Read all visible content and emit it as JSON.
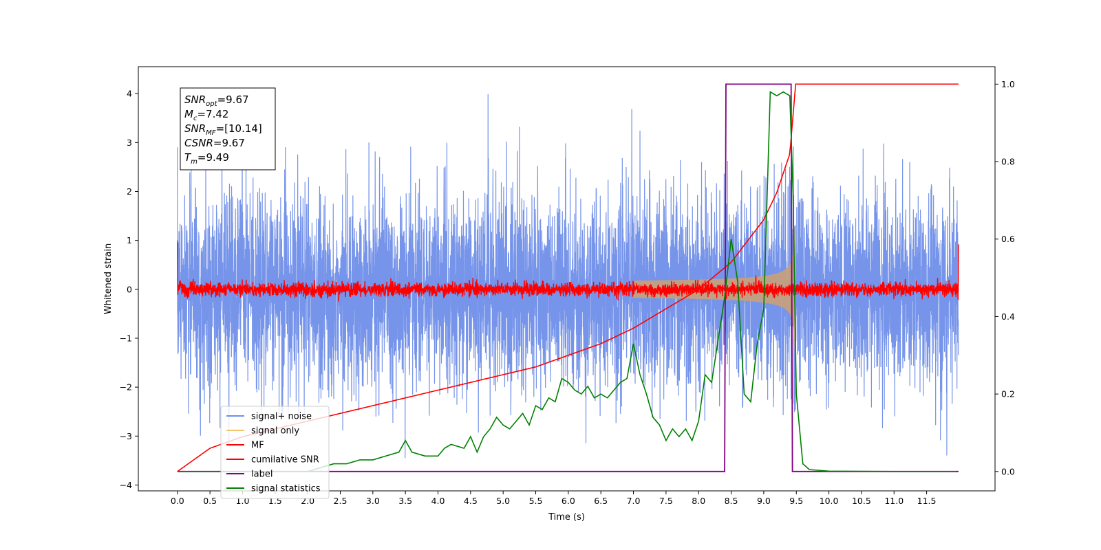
{
  "chart_data": {
    "type": "line",
    "title": "",
    "xlabel": "Time (s)",
    "ylabel": "Whitened strain",
    "xlim": [
      -0.6,
      12.55
    ],
    "ylim": [
      -4.12,
      4.55
    ],
    "y2lim": [
      -0.05,
      1.045
    ],
    "x_ticks": [
      "0.0",
      "0.5",
      "1.0",
      "1.5",
      "2.0",
      "2.5",
      "3.0",
      "3.5",
      "4.0",
      "4.5",
      "5.0",
      "5.5",
      "6.0",
      "6.5",
      "7.0",
      "7.5",
      "8.0",
      "8.5",
      "9.0",
      "9.5",
      "10.0",
      "10.5",
      "11.0",
      "11.5"
    ],
    "y_ticks": [
      "4",
      "3",
      "2",
      "1",
      "0",
      "−1",
      "−2",
      "−3",
      "−4"
    ],
    "y2_ticks": [
      "1.0",
      "0.8",
      "0.6",
      "0.4",
      "0.2",
      "0.0"
    ],
    "grid": false,
    "legend_position": "lower-left",
    "annotation": [
      {
        "main": "SNR",
        "sub": "opt",
        "value": "=9.67"
      },
      {
        "main": "M",
        "sub": "c",
        "value": "=7.42"
      },
      {
        "main": "SNR",
        "sub": "MF",
        "value": "=[10.14]"
      },
      {
        "main": "CSNR",
        "sub": "",
        "value": "=9.67"
      },
      {
        "main": "T",
        "sub": "m",
        "value": "=9.49"
      }
    ],
    "series": [
      {
        "name": "signal+ noise",
        "color": "#6f8ee8",
        "axis": "left",
        "noise_sigma": 1.0,
        "x_range": [
          0,
          11.99
        ]
      },
      {
        "name": "signal only",
        "color": "#f5c36b",
        "axis": "left",
        "chirp_end": 9.49,
        "chirp_peak_amplitude": 1.35,
        "x_range": [
          0,
          9.49
        ]
      },
      {
        "name": "MF",
        "color": "#ff0000",
        "axis": "left",
        "x_range": [
          0,
          11.99
        ]
      },
      {
        "name": "cumilative SNR",
        "color": "#ff0000",
        "axis": "right",
        "x": [
          0.0,
          0.5,
          1.0,
          1.5,
          2.0,
          2.5,
          3.0,
          3.5,
          4.0,
          4.5,
          5.0,
          5.5,
          6.0,
          6.5,
          7.0,
          7.5,
          8.0,
          8.5,
          9.0,
          9.2,
          9.4,
          9.49,
          10.0,
          11.0,
          11.5,
          11.99
        ],
        "values": [
          0.0,
          0.06,
          0.09,
          0.11,
          0.13,
          0.15,
          0.17,
          0.19,
          0.21,
          0.23,
          0.25,
          0.27,
          0.3,
          0.33,
          0.37,
          0.42,
          0.47,
          0.54,
          0.65,
          0.72,
          0.82,
          1.0,
          1.0,
          1.0,
          1.0,
          1.0
        ]
      },
      {
        "name": "label",
        "color": "#800080",
        "axis": "right",
        "x": [
          0.0,
          8.4,
          8.42,
          9.42,
          9.44,
          11.99
        ],
        "values": [
          0.0,
          0.0,
          1.0,
          1.0,
          0.0,
          0.0
        ]
      },
      {
        "name": "signal statistics",
        "color": "#008000",
        "axis": "right",
        "x": [
          0.0,
          0.5,
          1.0,
          1.5,
          2.0,
          2.2,
          2.4,
          2.6,
          2.8,
          3.0,
          3.2,
          3.4,
          3.5,
          3.6,
          3.8,
          4.0,
          4.1,
          4.2,
          4.4,
          4.5,
          4.6,
          4.7,
          4.8,
          4.9,
          5.0,
          5.1,
          5.2,
          5.3,
          5.4,
          5.5,
          5.6,
          5.7,
          5.8,
          5.9,
          6.0,
          6.1,
          6.2,
          6.3,
          6.4,
          6.5,
          6.6,
          6.7,
          6.8,
          6.9,
          7.0,
          7.1,
          7.2,
          7.3,
          7.4,
          7.5,
          7.6,
          7.7,
          7.8,
          7.9,
          8.0,
          8.1,
          8.2,
          8.3,
          8.4,
          8.5,
          8.6,
          8.7,
          8.8,
          8.9,
          9.0,
          9.1,
          9.2,
          9.3,
          9.4,
          9.45,
          9.5,
          9.6,
          9.7,
          10.0,
          11.0,
          11.5,
          11.95
        ],
        "values": [
          0.0,
          0.0,
          0.0,
          0.0,
          0.0,
          0.01,
          0.02,
          0.02,
          0.03,
          0.03,
          0.04,
          0.05,
          0.08,
          0.05,
          0.04,
          0.04,
          0.06,
          0.07,
          0.06,
          0.09,
          0.05,
          0.09,
          0.11,
          0.14,
          0.12,
          0.11,
          0.13,
          0.15,
          0.12,
          0.17,
          0.16,
          0.19,
          0.18,
          0.24,
          0.23,
          0.21,
          0.2,
          0.22,
          0.19,
          0.2,
          0.19,
          0.21,
          0.23,
          0.24,
          0.33,
          0.25,
          0.2,
          0.14,
          0.12,
          0.08,
          0.11,
          0.09,
          0.11,
          0.08,
          0.13,
          0.25,
          0.23,
          0.34,
          0.45,
          0.6,
          0.49,
          0.2,
          0.18,
          0.33,
          0.42,
          0.98,
          0.97,
          0.98,
          0.97,
          0.72,
          0.2,
          0.02,
          0.005,
          0.001,
          0.0,
          0.0,
          0.0
        ]
      }
    ]
  }
}
